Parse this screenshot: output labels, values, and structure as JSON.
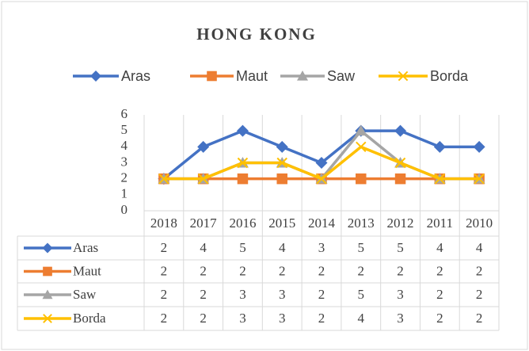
{
  "chart_data": {
    "type": "line",
    "title": "HONG KONG",
    "categories": [
      "2018",
      "2017",
      "2016",
      "2015",
      "2014",
      "2013",
      "2012",
      "2011",
      "2010"
    ],
    "series": [
      {
        "name": "Aras",
        "color": "#4472c4",
        "marker": "diamond",
        "values": [
          2,
          4,
          5,
          4,
          3,
          5,
          5,
          4,
          4
        ]
      },
      {
        "name": "Maut",
        "color": "#ed7d31",
        "marker": "square",
        "values": [
          2,
          2,
          2,
          2,
          2,
          2,
          2,
          2,
          2
        ]
      },
      {
        "name": "Saw",
        "color": "#a5a5a5",
        "marker": "triangle",
        "values": [
          2,
          2,
          3,
          3,
          2,
          5,
          3,
          2,
          2
        ]
      },
      {
        "name": "Borda",
        "color": "#ffc000",
        "marker": "x",
        "values": [
          2,
          2,
          3,
          3,
          2,
          4,
          3,
          2,
          2
        ]
      }
    ],
    "ylim": [
      0,
      6
    ],
    "yticks": [
      0,
      1,
      2,
      3,
      4,
      5,
      6
    ],
    "legend": "top",
    "data_table": true
  }
}
